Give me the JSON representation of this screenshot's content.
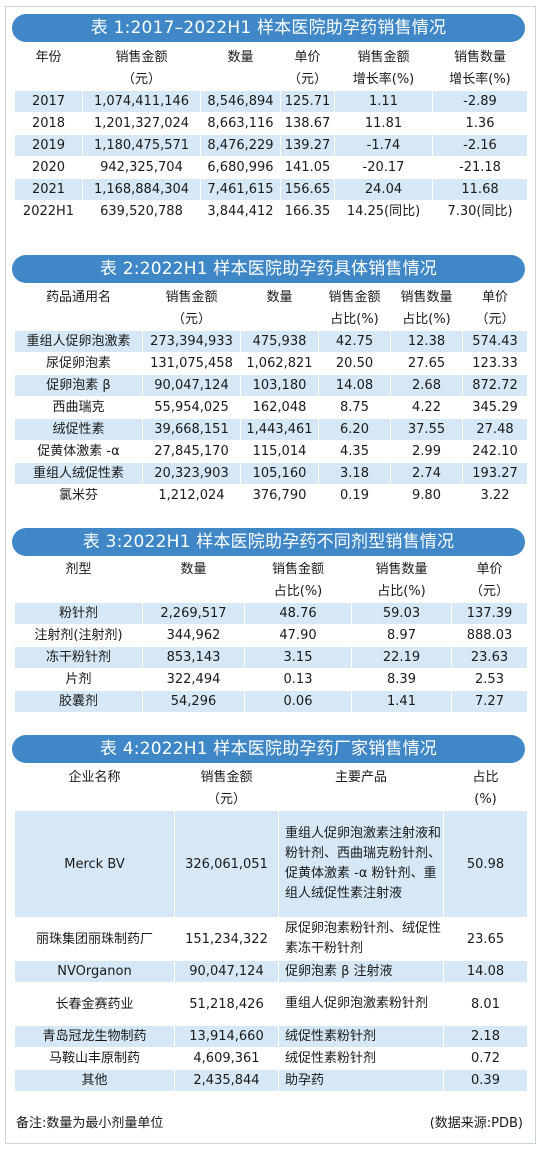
{
  "table1": {
    "title": "表 1:2017–2022H1 样本医院助孕药销售情况",
    "headers": [
      [
        "年份",
        ""
      ],
      [
        "销售金额",
        "（元）"
      ],
      [
        "数量",
        ""
      ],
      [
        "单价",
        "（元）"
      ],
      [
        "销售金额",
        "增长率(%)"
      ],
      [
        "销售数量",
        "增长率(%)"
      ]
    ],
    "rows": [
      [
        "2017",
        "1,074,411,146",
        "8,546,894",
        "125.71",
        "1.11",
        "-2.89"
      ],
      [
        "2018",
        "1,201,327,024",
        "8,663,116",
        "138.67",
        "11.81",
        "1.36"
      ],
      [
        "2019",
        "1,180,475,571",
        "8,476,229",
        "139.27",
        "-1.74",
        "-2.16"
      ],
      [
        "2020",
        "942,325,704",
        "6,680,996",
        "141.05",
        "-20.17",
        "-21.18"
      ],
      [
        "2021",
        "1,168,884,304",
        "7,461,615",
        "156.65",
        "24.04",
        "11.68"
      ],
      [
        "2022H1",
        "639,520,788",
        "3,844,412",
        "166.35",
        "14.25(同比)",
        "7.30(同比)"
      ]
    ]
  },
  "table2": {
    "title": "表 2:2022H1 样本医院助孕药具体销售情况",
    "headers": [
      [
        "药品通用名",
        ""
      ],
      [
        "销售金额",
        "（元）"
      ],
      [
        "数量",
        ""
      ],
      [
        "销售金额",
        "占比(%)"
      ],
      [
        "销售数量",
        "占比(%)"
      ],
      [
        "单价",
        "（元）"
      ]
    ],
    "rows": [
      [
        "重组人促卵泡激素",
        "273,394,933",
        "475,938",
        "42.75",
        "12.38",
        "574.43"
      ],
      [
        "尿促卵泡素",
        "131,075,458",
        "1,062,821",
        "20.50",
        "27.65",
        "123.33"
      ],
      [
        "促卵泡素 β",
        "90,047,124",
        "103,180",
        "14.08",
        "2.68",
        "872.72"
      ],
      [
        "西曲瑞克",
        "55,954,025",
        "162,048",
        "8.75",
        "4.22",
        "345.29"
      ],
      [
        "绒促性素",
        "39,668,151",
        "1,443,461",
        "6.20",
        "37.55",
        "27.48"
      ],
      [
        "促黄体激素 -α",
        "27,845,170",
        "115,014",
        "4.35",
        "2.99",
        "242.10"
      ],
      [
        "重组人绒促性素",
        "20,323,903",
        "105,160",
        "3.18",
        "2.74",
        "193.27"
      ],
      [
        "氯米芬",
        "1,212,024",
        "376,790",
        "0.19",
        "9.80",
        "3.22"
      ]
    ]
  },
  "table3": {
    "title": "表 3:2022H1 样本医院助孕药不同剂型销售情况",
    "headers": [
      [
        "剂型",
        ""
      ],
      [
        "数量",
        ""
      ],
      [
        "销售金额",
        "占比(%)"
      ],
      [
        "销售数量",
        "占比(%)"
      ],
      [
        "单价",
        "（元）"
      ]
    ],
    "rows": [
      [
        "粉针剂",
        "2,269,517",
        "48.76",
        "59.03",
        "137.39"
      ],
      [
        "注射剂(注射剂)",
        "344,962",
        "47.90",
        "8.97",
        "888.03"
      ],
      [
        "冻干粉针剂",
        "853,143",
        "3.15",
        "22.19",
        "23.63"
      ],
      [
        "片剂",
        "322,494",
        "0.13",
        "8.39",
        "2.53"
      ],
      [
        "胶囊剂",
        "54,296",
        "0.06",
        "1.41",
        "7.27"
      ]
    ]
  },
  "table4": {
    "title": "表 4:2022H1 样本医院助孕药厂家销售情况",
    "headers": [
      [
        "企业名称",
        ""
      ],
      [
        "销售金额",
        "（元）"
      ],
      [
        "主要产品",
        ""
      ],
      [
        "占比",
        "(%)"
      ]
    ],
    "rows": [
      [
        "Merck BV",
        "326,061,051",
        "重组人促卵泡激素注射液和粉针剂、西曲瑞克粉针剂、促黄体激素 -α 粉针剂、重组人绒促性素注射液",
        "50.98"
      ],
      [
        "丽珠集团丽珠制药厂",
        "151,234,322",
        "尿促卵泡素粉针剂、绒促性素冻干粉针剂",
        "23.65"
      ],
      [
        "NVOrganon",
        "90,047,124",
        "促卵泡素 β 注射液",
        "14.08"
      ],
      [
        "长春金赛药业",
        "51,218,426",
        "重组人促卵泡激素粉针剂",
        "8.01"
      ],
      [
        "青岛冠龙生物制药",
        "13,914,660",
        "绒促性素粉针剂",
        "2.18"
      ],
      [
        "马鞍山丰原制药",
        "4,609,361",
        "绒促性素粉针剂",
        "0.72"
      ],
      [
        "其他",
        "2,435,844",
        "助孕药",
        "0.39"
      ]
    ]
  },
  "footer": {
    "note": "备注:数量为最小剂量单位",
    "source": "(数据来源:PDB)"
  },
  "colors": {
    "banner": "#3f87c7",
    "row_alt": "#d6e8f6",
    "rule": "#2a5f92"
  }
}
